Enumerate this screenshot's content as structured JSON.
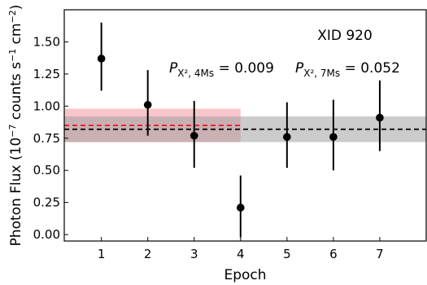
{
  "chart_data": {
    "type": "scatter",
    "title": "",
    "xlabel": "Epoch",
    "ylabel": {
      "base": "Photon Flux (10",
      "exp1": "−7",
      "mid1": " counts s",
      "exp2": "−1",
      "mid2": " cm",
      "exp3": "−2",
      "end": ")"
    },
    "xlim": [
      0.2,
      8.0
    ],
    "ylim": [
      -0.05,
      1.75
    ],
    "xticks": [
      1,
      2,
      3,
      4,
      5,
      6,
      7
    ],
    "yticks": [
      0.0,
      0.25,
      0.5,
      0.75,
      1.0,
      1.25,
      1.5
    ],
    "ytick_labels": [
      "0.00",
      "0.25",
      "0.50",
      "0.75",
      "1.00",
      "1.25",
      "1.50"
    ],
    "grid": false,
    "points": [
      {
        "epoch": 1,
        "flux": 1.37,
        "err_low": 1.12,
        "err_high": 1.65
      },
      {
        "epoch": 2,
        "flux": 1.01,
        "err_low": 0.77,
        "err_high": 1.28
      },
      {
        "epoch": 3,
        "flux": 0.77,
        "err_low": 0.52,
        "err_high": 1.04
      },
      {
        "epoch": 4,
        "flux": 0.21,
        "err_low": -0.02,
        "err_high": 0.46
      },
      {
        "epoch": 5,
        "flux": 0.76,
        "err_low": 0.52,
        "err_high": 1.03
      },
      {
        "epoch": 6,
        "flux": 0.76,
        "err_low": 0.5,
        "err_high": 1.05
      },
      {
        "epoch": 7,
        "flux": 0.91,
        "err_low": 0.65,
        "err_high": 1.2
      }
    ],
    "bands": [
      {
        "x_start": 0.2,
        "x_end": 4.0,
        "low": 0.72,
        "high": 0.98,
        "color": "#f6b3b8",
        "opacity": 0.75
      },
      {
        "x_start": 0.2,
        "x_end": 8.0,
        "low": 0.72,
        "high": 0.92,
        "color": "#9a9a9a",
        "opacity": 0.5
      }
    ],
    "mean_lines": [
      {
        "x_start": 0.2,
        "x_end": 4.0,
        "value": 0.85,
        "color": "#e8141e"
      },
      {
        "x_start": 0.2,
        "x_end": 8.0,
        "value": 0.82,
        "color": "#000000"
      }
    ],
    "source_label": "XID 920",
    "pvalues": [
      {
        "symbol": "P",
        "subscript": "X², 4Ms",
        "value": " = 0.009"
      },
      {
        "symbol": "P",
        "subscript": "X², 7Ms",
        "value": " = 0.052"
      }
    ]
  }
}
